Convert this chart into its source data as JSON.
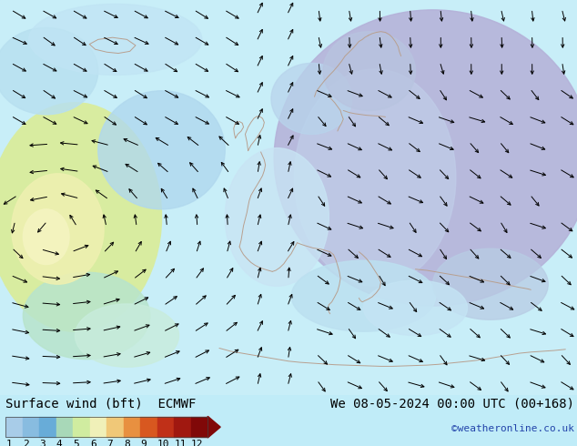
{
  "title_left": "Surface wind (bft)  ECMWF",
  "title_right": "We 08-05-2024 00:00 UTC (00+168)",
  "credit": "©weatheronline.co.uk",
  "colorbar_labels": [
    "1",
    "2",
    "3",
    "4",
    "5",
    "6",
    "7",
    "8",
    "9",
    "10",
    "11",
    "12"
  ],
  "colorbar_colors": [
    "#a8cce8",
    "#88bce0",
    "#68acd8",
    "#a8d8b8",
    "#d0eca0",
    "#f0f0b8",
    "#f0c878",
    "#e89040",
    "#d85820",
    "#c03018",
    "#a01810",
    "#800808"
  ],
  "map_bg": "#c0ecf8",
  "bar_bg": "#ffffff",
  "bottom_bar_height": 0.115,
  "font_size_title": 10,
  "font_size_credit": 8,
  "font_size_colorbar": 8,
  "coast_color": "#b8a090",
  "arrow_color": "#000000"
}
